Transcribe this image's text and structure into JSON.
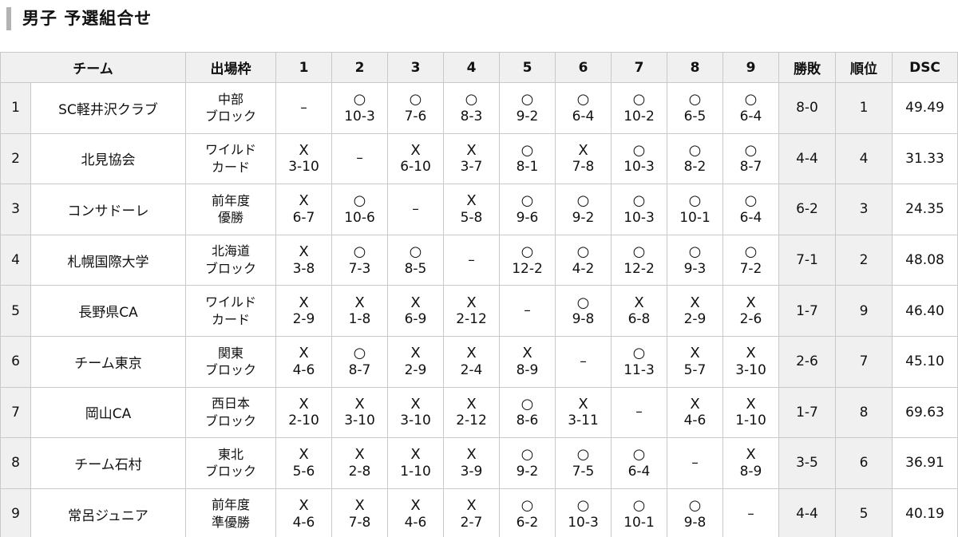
{
  "page": {
    "title": "男子 予選組合せ"
  },
  "colors": {
    "header_bg": "#f0f0f1",
    "shaded_cell_bg": "#f0f0f1",
    "border": "#c9c9c9",
    "title_accent_bar": "#b3b3b3",
    "text": "#111111"
  },
  "table": {
    "columns": {
      "team": "チーム",
      "slot": "出場枠",
      "games": [
        "1",
        "2",
        "3",
        "4",
        "5",
        "6",
        "7",
        "8",
        "9"
      ],
      "record": "勝敗",
      "rank": "順位",
      "dsc": "DSC"
    },
    "marks": {
      "win": "○",
      "loss": "X",
      "self": "–"
    },
    "rows": [
      {
        "no": "1",
        "team": "SC軽井沢クラブ",
        "slot": "中部\nブロック",
        "games": [
          null,
          {
            "result": "win",
            "score": "10-3"
          },
          {
            "result": "win",
            "score": "7-6"
          },
          {
            "result": "win",
            "score": "8-3"
          },
          {
            "result": "win",
            "score": "9-2"
          },
          {
            "result": "win",
            "score": "6-4"
          },
          {
            "result": "win",
            "score": "10-2"
          },
          {
            "result": "win",
            "score": "6-5"
          },
          {
            "result": "win",
            "score": "6-4"
          }
        ],
        "record": "8-0",
        "rank": "1",
        "dsc": "49.49"
      },
      {
        "no": "2",
        "team": "北見協会",
        "slot": "ワイルド\nカード",
        "games": [
          {
            "result": "loss",
            "score": "3-10"
          },
          null,
          {
            "result": "loss",
            "score": "6-10"
          },
          {
            "result": "loss",
            "score": "3-7"
          },
          {
            "result": "win",
            "score": "8-1"
          },
          {
            "result": "loss",
            "score": "7-8"
          },
          {
            "result": "win",
            "score": "10-3"
          },
          {
            "result": "win",
            "score": "8-2"
          },
          {
            "result": "win",
            "score": "8-7"
          }
        ],
        "record": "4-4",
        "rank": "4",
        "dsc": "31.33"
      },
      {
        "no": "3",
        "team": "コンサドーレ",
        "slot": "前年度\n優勝",
        "games": [
          {
            "result": "loss",
            "score": "6-7"
          },
          {
            "result": "win",
            "score": "10-6"
          },
          null,
          {
            "result": "loss",
            "score": "5-8"
          },
          {
            "result": "win",
            "score": "9-6"
          },
          {
            "result": "win",
            "score": "9-2"
          },
          {
            "result": "win",
            "score": "10-3"
          },
          {
            "result": "win",
            "score": "10-1"
          },
          {
            "result": "win",
            "score": "6-4"
          }
        ],
        "record": "6-2",
        "rank": "3",
        "dsc": "24.35"
      },
      {
        "no": "4",
        "team": "札幌国際大学",
        "slot": "北海道\nブロック",
        "games": [
          {
            "result": "loss",
            "score": "3-8"
          },
          {
            "result": "win",
            "score": "7-3"
          },
          {
            "result": "win",
            "score": "8-5"
          },
          null,
          {
            "result": "win",
            "score": "12-2"
          },
          {
            "result": "win",
            "score": "4-2"
          },
          {
            "result": "win",
            "score": "12-2"
          },
          {
            "result": "win",
            "score": "9-3"
          },
          {
            "result": "win",
            "score": "7-2"
          }
        ],
        "record": "7-1",
        "rank": "2",
        "dsc": "48.08"
      },
      {
        "no": "5",
        "team": "長野県CA",
        "slot": "ワイルド\nカード",
        "games": [
          {
            "result": "loss",
            "score": "2-9"
          },
          {
            "result": "loss",
            "score": "1-8"
          },
          {
            "result": "loss",
            "score": "6-9"
          },
          {
            "result": "loss",
            "score": "2-12"
          },
          null,
          {
            "result": "win",
            "score": "9-8"
          },
          {
            "result": "loss",
            "score": "6-8"
          },
          {
            "result": "loss",
            "score": "2-9"
          },
          {
            "result": "loss",
            "score": "2-6"
          }
        ],
        "record": "1-7",
        "rank": "9",
        "dsc": "46.40"
      },
      {
        "no": "6",
        "team": "チーム東京",
        "slot": "関東\nブロック",
        "games": [
          {
            "result": "loss",
            "score": "4-6"
          },
          {
            "result": "win",
            "score": "8-7"
          },
          {
            "result": "loss",
            "score": "2-9"
          },
          {
            "result": "loss",
            "score": "2-4"
          },
          {
            "result": "loss",
            "score": "8-9"
          },
          null,
          {
            "result": "win",
            "score": "11-3"
          },
          {
            "result": "loss",
            "score": "5-7"
          },
          {
            "result": "loss",
            "score": "3-10"
          }
        ],
        "record": "2-6",
        "rank": "7",
        "dsc": "45.10"
      },
      {
        "no": "7",
        "team": "岡山CA",
        "slot": "西日本\nブロック",
        "games": [
          {
            "result": "loss",
            "score": "2-10"
          },
          {
            "result": "loss",
            "score": "3-10"
          },
          {
            "result": "loss",
            "score": "3-10"
          },
          {
            "result": "loss",
            "score": "2-12"
          },
          {
            "result": "win",
            "score": "8-6"
          },
          {
            "result": "loss",
            "score": "3-11"
          },
          null,
          {
            "result": "loss",
            "score": "4-6"
          },
          {
            "result": "loss",
            "score": "1-10"
          }
        ],
        "record": "1-7",
        "rank": "8",
        "dsc": "69.63"
      },
      {
        "no": "8",
        "team": "チーム石村",
        "slot": "東北\nブロック",
        "games": [
          {
            "result": "loss",
            "score": "5-6"
          },
          {
            "result": "loss",
            "score": "2-8"
          },
          {
            "result": "loss",
            "score": "1-10"
          },
          {
            "result": "loss",
            "score": "3-9"
          },
          {
            "result": "win",
            "score": "9-2"
          },
          {
            "result": "win",
            "score": "7-5"
          },
          {
            "result": "win",
            "score": "6-4"
          },
          null,
          {
            "result": "loss",
            "score": "8-9"
          }
        ],
        "record": "3-5",
        "rank": "6",
        "dsc": "36.91"
      },
      {
        "no": "9",
        "team": "常呂ジュニア",
        "slot": "前年度\n準優勝",
        "games": [
          {
            "result": "loss",
            "score": "4-6"
          },
          {
            "result": "loss",
            "score": "7-8"
          },
          {
            "result": "loss",
            "score": "4-6"
          },
          {
            "result": "loss",
            "score": "2-7"
          },
          {
            "result": "win",
            "score": "6-2"
          },
          {
            "result": "win",
            "score": "10-3"
          },
          {
            "result": "win",
            "score": "10-1"
          },
          {
            "result": "win",
            "score": "9-8"
          },
          null
        ],
        "record": "4-4",
        "rank": "5",
        "dsc": "40.19"
      }
    ]
  }
}
